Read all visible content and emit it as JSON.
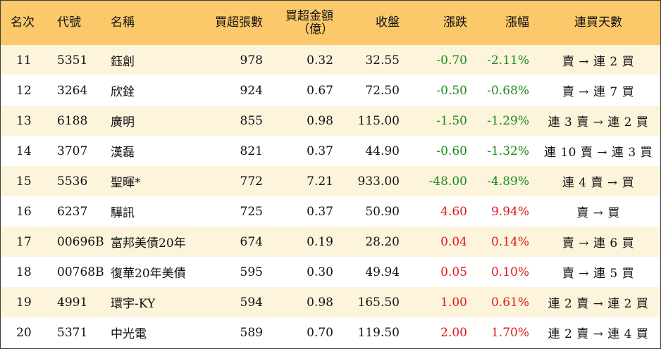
{
  "headers": {
    "rank": "名次",
    "code": "代號",
    "name": "名稱",
    "buy_lots": "買超張數",
    "buy_amount_line1": "買超金額",
    "buy_amount_line2": "（億）",
    "close": "收盤",
    "change": "漲跌",
    "change_pct": "漲幅",
    "days": "連買天數"
  },
  "colors": {
    "header_bg": "#fbc86a",
    "row_alt_bg": "#fdf4dc",
    "negative": "#1a8a1a",
    "positive": "#e0161c"
  },
  "rows": [
    {
      "rank": "11",
      "code": "5351",
      "name": "鈺創",
      "buy_lots": "978",
      "buy_amount": "0.32",
      "close": "32.55",
      "change": "-0.70",
      "change_pct": "-2.11%",
      "days": "賣 → 連 2 買",
      "dir": "neg"
    },
    {
      "rank": "12",
      "code": "3264",
      "name": "欣銓",
      "buy_lots": "924",
      "buy_amount": "0.67",
      "close": "72.50",
      "change": "-0.50",
      "change_pct": "-0.68%",
      "days": "賣 → 連 7 買",
      "dir": "neg"
    },
    {
      "rank": "13",
      "code": "6188",
      "name": "廣明",
      "buy_lots": "855",
      "buy_amount": "0.98",
      "close": "115.00",
      "change": "-1.50",
      "change_pct": "-1.29%",
      "days": "連 3 賣 → 連 2 買",
      "dir": "neg"
    },
    {
      "rank": "14",
      "code": "3707",
      "name": "漢磊",
      "buy_lots": "821",
      "buy_amount": "0.37",
      "close": "44.90",
      "change": "-0.60",
      "change_pct": "-1.32%",
      "days": "連 10 賣 → 連 3 買",
      "dir": "neg"
    },
    {
      "rank": "15",
      "code": "5536",
      "name": "聖暉*",
      "buy_lots": "772",
      "buy_amount": "7.21",
      "close": "933.00",
      "change": "-48.00",
      "change_pct": "-4.89%",
      "days": "連 4 賣 → 買",
      "dir": "neg"
    },
    {
      "rank": "16",
      "code": "6237",
      "name": "驊訊",
      "buy_lots": "725",
      "buy_amount": "0.37",
      "close": "50.90",
      "change": "4.60",
      "change_pct": "9.94%",
      "days": "賣 → 買",
      "dir": "pos"
    },
    {
      "rank": "17",
      "code": "00696B",
      "name": "富邦美債20年",
      "buy_lots": "674",
      "buy_amount": "0.19",
      "close": "28.20",
      "change": "0.04",
      "change_pct": "0.14%",
      "days": "賣 → 連 6 買",
      "dir": "pos"
    },
    {
      "rank": "18",
      "code": "00768B",
      "name": "復華20年美債",
      "buy_lots": "595",
      "buy_amount": "0.30",
      "close": "49.94",
      "change": "0.05",
      "change_pct": "0.10%",
      "days": "賣 → 連 5 買",
      "dir": "pos"
    },
    {
      "rank": "19",
      "code": "4991",
      "name": "環宇-KY",
      "buy_lots": "594",
      "buy_amount": "0.98",
      "close": "165.50",
      "change": "1.00",
      "change_pct": "0.61%",
      "days": "連 2 賣 → 連 2 買",
      "dir": "pos"
    },
    {
      "rank": "20",
      "code": "5371",
      "name": "中光電",
      "buy_lots": "589",
      "buy_amount": "0.70",
      "close": "119.50",
      "change": "2.00",
      "change_pct": "1.70%",
      "days": "連 2 賣 → 連 4 買",
      "dir": "pos"
    }
  ]
}
